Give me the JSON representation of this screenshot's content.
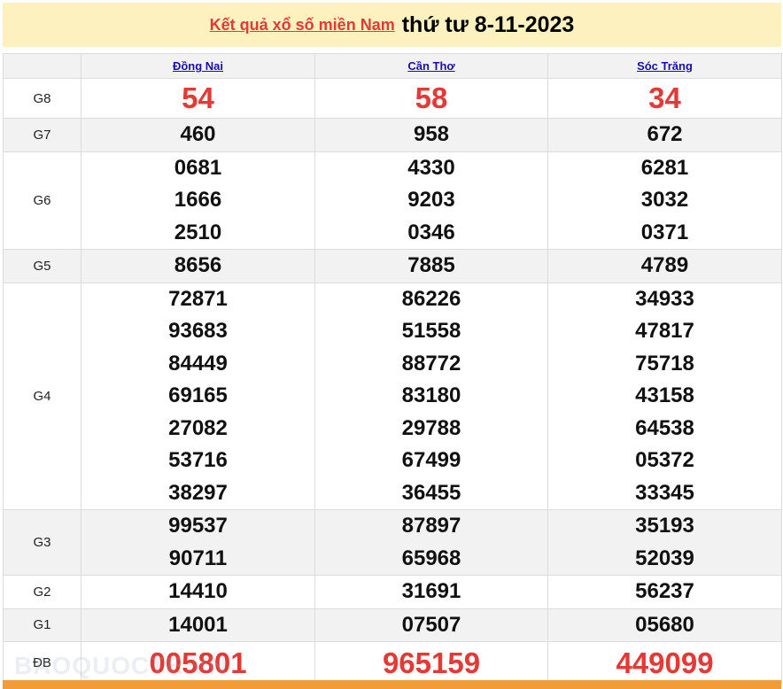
{
  "header": {
    "link_text": "Kết quả xổ số miền Nam",
    "date_text": "thứ tư 8-11-2023"
  },
  "provinces": [
    "Đồng Nai",
    "Cần Thơ",
    "Sóc Trăng"
  ],
  "prizes": [
    {
      "label": "G8",
      "values": [
        [
          "54"
        ],
        [
          "58"
        ],
        [
          "34"
        ]
      ]
    },
    {
      "label": "G7",
      "values": [
        [
          "460"
        ],
        [
          "958"
        ],
        [
          "672"
        ]
      ]
    },
    {
      "label": "G6",
      "values": [
        [
          "0681",
          "1666",
          "2510"
        ],
        [
          "4330",
          "9203",
          "0346"
        ],
        [
          "6281",
          "3032",
          "0371"
        ]
      ]
    },
    {
      "label": "G5",
      "values": [
        [
          "8656"
        ],
        [
          "7885"
        ],
        [
          "4789"
        ]
      ]
    },
    {
      "label": "G4",
      "values": [
        [
          "72871",
          "93683",
          "84449",
          "69165",
          "27082",
          "53716",
          "38297"
        ],
        [
          "86226",
          "51558",
          "88772",
          "83180",
          "29788",
          "67499",
          "36455"
        ],
        [
          "34933",
          "47817",
          "75718",
          "43158",
          "64538",
          "05372",
          "33345"
        ]
      ]
    },
    {
      "label": "G3",
      "values": [
        [
          "99537",
          "90711"
        ],
        [
          "87897",
          "65968"
        ],
        [
          "35193",
          "52039"
        ]
      ]
    },
    {
      "label": "G2",
      "values": [
        [
          "14410"
        ],
        [
          "31691"
        ],
        [
          "56237"
        ]
      ]
    },
    {
      "label": "G1",
      "values": [
        [
          "14001"
        ],
        [
          "07507"
        ],
        [
          "05680"
        ]
      ]
    },
    {
      "label": "ĐB",
      "values": [
        [
          "005801"
        ],
        [
          "965159"
        ],
        [
          "449099"
        ]
      ]
    }
  ],
  "watermark": "BAOQUOCTE.VN",
  "colors": {
    "banner": "#fdf1c0",
    "highlight": "#e53935",
    "link": "#1a0dab",
    "footer_bar": "#f29c38"
  }
}
